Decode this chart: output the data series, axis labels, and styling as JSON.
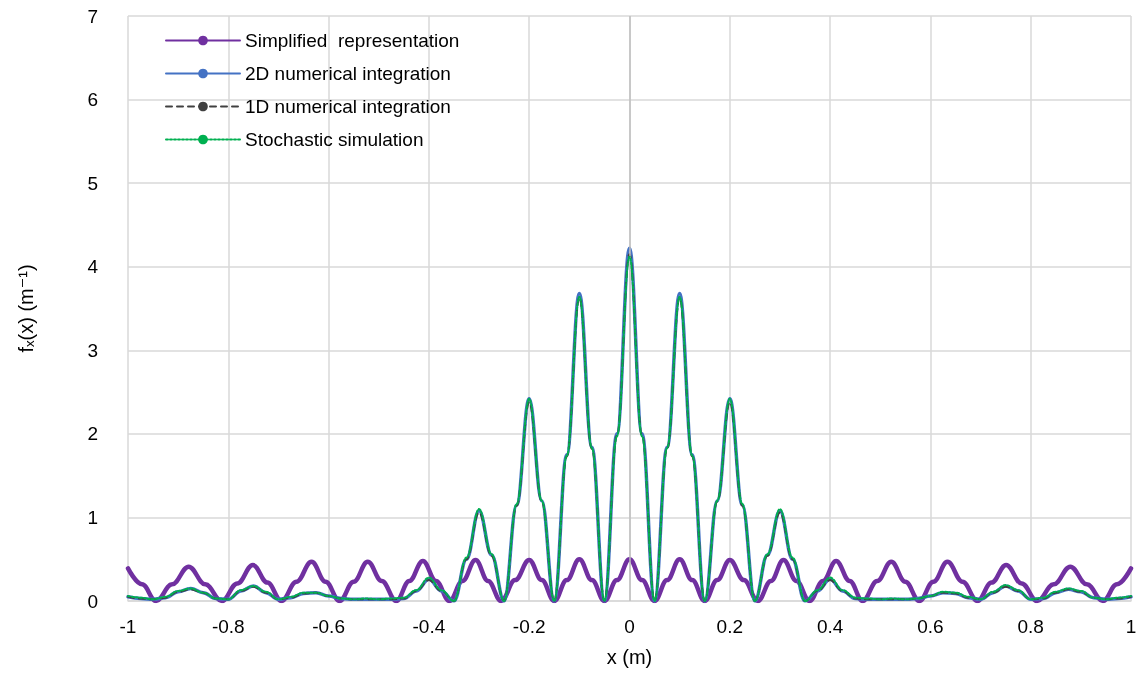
{
  "chart_data": {
    "type": "line",
    "xlabel": "x (m)",
    "ylabel": "fₓ(x) (m⁻¹)",
    "xlim": [
      -1,
      1
    ],
    "xticks": [
      -1,
      -0.8,
      -0.6,
      -0.4,
      -0.2,
      0,
      0.2,
      0.4,
      0.6,
      0.8,
      1
    ],
    "ylim": [
      0,
      7
    ],
    "yticks": [
      0,
      1,
      2,
      3,
      4,
      5,
      6,
      7
    ],
    "grid": true,
    "legend": "top left",
    "marker": "none",
    "ref_lines": [
      {
        "axis": "x",
        "value": 0,
        "color": "#bfbfbf"
      }
    ],
    "x": [
      -1,
      -0.975,
      -0.95,
      -0.925,
      -0.9,
      -0.875,
      -0.85,
      -0.825,
      -0.8,
      -0.775,
      -0.75,
      -0.725,
      -0.7,
      -0.675,
      -0.65,
      -0.625,
      -0.6,
      -0.575,
      -0.55,
      -0.525,
      -0.5,
      -0.475,
      -0.45,
      -0.425,
      -0.4,
      -0.375,
      -0.35,
      -0.325,
      -0.3,
      -0.275,
      -0.25,
      -0.225,
      -0.2,
      -0.175,
      -0.15,
      -0.125,
      -0.1,
      -0.075,
      -0.05,
      -0.025,
      0,
      0.025,
      0.05,
      0.075,
      0.1,
      0.125,
      0.15,
      0.175,
      0.2,
      0.225,
      0.25,
      0.275,
      0.3,
      0.325,
      0.35,
      0.375,
      0.4,
      0.425,
      0.45,
      0.475,
      0.5,
      0.525,
      0.55,
      0.575,
      0.6,
      0.625,
      0.65,
      0.675,
      0.7,
      0.725,
      0.75,
      0.775,
      0.8,
      0.825,
      0.85,
      0.875,
      0.9,
      0.925,
      0.95,
      0.975,
      1
    ],
    "series": [
      {
        "name": "Simplified  representation",
        "color": "#7030a0",
        "line_style": "solid",
        "x": [
          -1,
          -0.972,
          -0.944,
          -0.912,
          -0.879,
          -0.846,
          -0.813,
          -0.782,
          -0.751,
          -0.722,
          -0.694,
          -0.664,
          -0.634,
          -0.606,
          -0.578,
          -0.55,
          -0.522,
          -0.494,
          -0.465,
          -0.439,
          -0.412,
          -0.386,
          -0.359,
          -0.333,
          -0.307,
          -0.282,
          -0.256,
          -0.228,
          -0.2,
          -0.175,
          -0.15,
          -0.125,
          -0.1,
          -0.075,
          -0.05,
          -0.025,
          0,
          0.025,
          0.05,
          0.075,
          0.1,
          0.125,
          0.15,
          0.175,
          0.2,
          0.228,
          0.256,
          0.282,
          0.307,
          0.333,
          0.359,
          0.386,
          0.412,
          0.439,
          0.465,
          0.494,
          0.522,
          0.55,
          0.578,
          0.606,
          0.634,
          0.664,
          0.694,
          0.722,
          0.751,
          0.782,
          0.813,
          0.846,
          0.879,
          0.912,
          0.944,
          0.972,
          1
        ],
        "values": [
          0.39,
          0.2,
          0,
          0.2,
          0.41,
          0.2,
          0,
          0.21,
          0.43,
          0.22,
          0,
          0.23,
          0.47,
          0.23,
          0,
          0.23,
          0.47,
          0.24,
          0,
          0.24,
          0.48,
          0.24,
          0,
          0.24,
          0.49,
          0.24,
          0,
          0.25,
          0.49,
          0.25,
          0,
          0.25,
          0.5,
          0.25,
          0,
          0.25,
          0.5,
          0.25,
          0,
          0.25,
          0.5,
          0.25,
          0,
          0.25,
          0.49,
          0.25,
          0,
          0.24,
          0.49,
          0.24,
          0,
          0.24,
          0.48,
          0.24,
          0,
          0.24,
          0.47,
          0.23,
          0,
          0.23,
          0.47,
          0.23,
          0,
          0.22,
          0.43,
          0.21,
          0,
          0.2,
          0.41,
          0.2,
          0,
          0.2,
          0.39
        ]
      },
      {
        "name": "2D numerical integration",
        "color": "#4472c4",
        "line_style": "solid",
        "values": [
          0.05,
          0.03,
          0.02,
          0.04,
          0.11,
          0.15,
          0.1,
          0.03,
          0.02,
          0.12,
          0.18,
          0.1,
          0.02,
          0.04,
          0.09,
          0.1,
          0.06,
          0.03,
          0.02,
          0.02,
          0.02,
          0.02,
          0.03,
          0.12,
          0.26,
          0.12,
          0,
          0.5,
          1.08,
          0.55,
          0,
          1.15,
          2.42,
          1.2,
          0,
          1.75,
          3.68,
          1.84,
          0,
          2,
          4.22,
          2,
          0,
          1.84,
          3.68,
          1.75,
          0,
          1.2,
          2.42,
          1.15,
          0,
          0.55,
          1.08,
          0.5,
          0,
          0.12,
          0.26,
          0.12,
          0.03,
          0.02,
          0.02,
          0.02,
          0.02,
          0.03,
          0.06,
          0.1,
          0.09,
          0.04,
          0.02,
          0.1,
          0.18,
          0.12,
          0.02,
          0.03,
          0.1,
          0.14,
          0.11,
          0.04,
          0.02,
          0.03,
          0.05
        ]
      },
      {
        "name": "1D numerical integration",
        "color": "#404040",
        "line_style": "dashed",
        "values": [
          0.05,
          0.03,
          0.02,
          0.04,
          0.11,
          0.14,
          0.1,
          0.03,
          0.02,
          0.12,
          0.17,
          0.1,
          0.02,
          0.04,
          0.09,
          0.1,
          0.06,
          0.03,
          0.02,
          0.02,
          0.02,
          0.02,
          0.03,
          0.12,
          0.25,
          0.12,
          0,
          0.5,
          1.06,
          0.54,
          0,
          1.14,
          2.38,
          1.19,
          0,
          1.73,
          3.63,
          1.82,
          0,
          1.98,
          4.15,
          1.98,
          0,
          1.82,
          3.63,
          1.73,
          0,
          1.19,
          2.38,
          1.14,
          0,
          0.54,
          1.06,
          0.5,
          0,
          0.12,
          0.25,
          0.12,
          0.03,
          0.02,
          0.02,
          0.02,
          0.02,
          0.03,
          0.06,
          0.1,
          0.09,
          0.04,
          0.02,
          0.1,
          0.17,
          0.12,
          0.02,
          0.03,
          0.1,
          0.14,
          0.11,
          0.04,
          0.02,
          0.03,
          0.05
        ]
      },
      {
        "name": "Stochastic simulation",
        "color": "#00b050",
        "line_style": "dotted",
        "values": [
          0.06,
          0.04,
          0.02,
          0.05,
          0.12,
          0.15,
          0.1,
          0.03,
          0.02,
          0.13,
          0.18,
          0.11,
          0.02,
          0.05,
          0.1,
          0.1,
          0.06,
          0.03,
          0.02,
          0.03,
          0.02,
          0.03,
          0.04,
          0.13,
          0.28,
          0.13,
          0,
          0.52,
          1.1,
          0.56,
          0,
          1.16,
          2.42,
          1.2,
          0,
          1.74,
          3.64,
          1.83,
          0,
          1.97,
          4.12,
          1.97,
          0,
          1.83,
          3.64,
          1.74,
          0,
          1.2,
          2.42,
          1.16,
          0,
          0.56,
          1.1,
          0.52,
          0,
          0.13,
          0.28,
          0.13,
          0.04,
          0.03,
          0.02,
          0.03,
          0.02,
          0.03,
          0.06,
          0.11,
          0.1,
          0.05,
          0.02,
          0.11,
          0.19,
          0.13,
          0.02,
          0.04,
          0.11,
          0.15,
          0.12,
          0.04,
          0.02,
          0.04,
          0.06
        ]
      }
    ]
  }
}
